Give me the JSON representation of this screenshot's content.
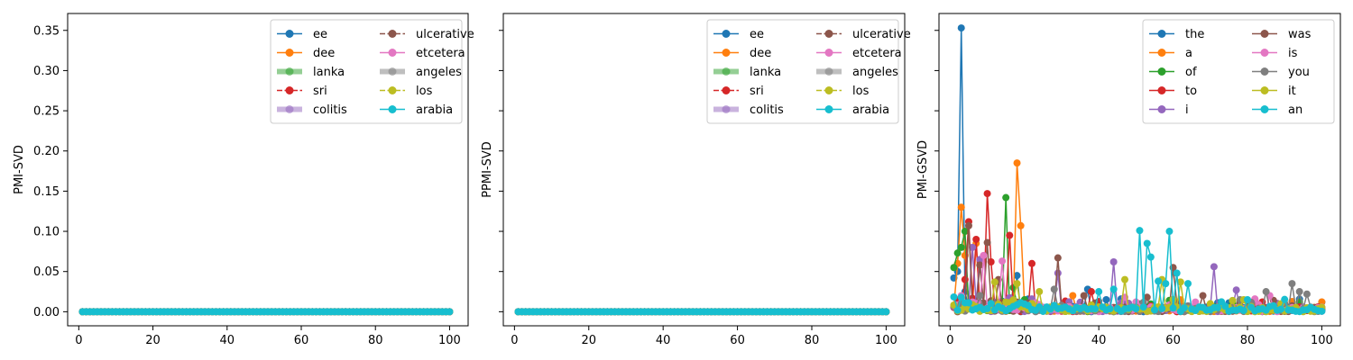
{
  "colors": {
    "tab10": [
      "#1f77b4",
      "#ff7f0e",
      "#2ca02c",
      "#d62728",
      "#9467bd",
      "#8c564b",
      "#e377c2",
      "#7f7f7f",
      "#bcbd22",
      "#17becf"
    ]
  },
  "chart_data": [
    {
      "type": "line",
      "title": "",
      "xlabel": "",
      "ylabel": "PMI-SVD",
      "xlim": [
        -3,
        105
      ],
      "ylim": [
        -0.0175,
        0.371
      ],
      "xticks": [
        "0",
        "20",
        "40",
        "60",
        "80",
        "100"
      ],
      "yticks": [
        "0.00",
        "0.05",
        "0.10",
        "0.15",
        "0.20",
        "0.25",
        "0.30",
        "0.35"
      ],
      "legend_position": "upper-right",
      "legend_columns": 2,
      "series": [
        {
          "name": "ee",
          "style": "solid"
        },
        {
          "name": "dee",
          "style": "solid"
        },
        {
          "name": "lanka",
          "style": "thick"
        },
        {
          "name": "sri",
          "style": "dashed"
        },
        {
          "name": "colitis",
          "style": "thick"
        },
        {
          "name": "ulcerative",
          "style": "dashed"
        },
        {
          "name": "etcetera",
          "style": "solid"
        },
        {
          "name": "angeles",
          "style": "thick"
        },
        {
          "name": "los",
          "style": "dashed"
        },
        {
          "name": "arabia",
          "style": "solid"
        }
      ],
      "series_values": "all series are approximately 0.00 for x = 1..100"
    },
    {
      "type": "line",
      "title": "",
      "xlabel": "",
      "ylabel": "PPMI-SVD",
      "xlim": [
        -3,
        105
      ],
      "ylim": [
        -0.0175,
        0.371
      ],
      "xticks": [
        "0",
        "20",
        "40",
        "60",
        "80",
        "100"
      ],
      "yticks": [],
      "legend_position": "upper-right",
      "legend_columns": 2,
      "series": [
        {
          "name": "ee",
          "style": "solid"
        },
        {
          "name": "dee",
          "style": "solid"
        },
        {
          "name": "lanka",
          "style": "thick"
        },
        {
          "name": "sri",
          "style": "dashed"
        },
        {
          "name": "colitis",
          "style": "thick"
        },
        {
          "name": "ulcerative",
          "style": "dashed"
        },
        {
          "name": "etcetera",
          "style": "solid"
        },
        {
          "name": "angeles",
          "style": "thick"
        },
        {
          "name": "los",
          "style": "dashed"
        },
        {
          "name": "arabia",
          "style": "solid"
        }
      ],
      "series_values": "all series are approximately 0.00 for x = 1..100"
    },
    {
      "type": "line",
      "title": "",
      "xlabel": "",
      "ylabel": "PMI-GSVD",
      "xlim": [
        -3,
        105
      ],
      "ylim": [
        -0.0175,
        0.371
      ],
      "xticks": [
        "0",
        "20",
        "40",
        "60",
        "80",
        "100"
      ],
      "yticks": [],
      "legend_position": "upper-right",
      "legend_columns": 2,
      "series": [
        {
          "name": "the",
          "style": "solid",
          "peaks": [
            [
              1,
              0.042
            ],
            [
              2,
              0.05
            ],
            [
              3,
              0.353
            ],
            [
              4,
              0.025
            ],
            [
              18,
              0.045
            ],
            [
              37,
              0.028
            ],
            [
              42,
              0.015
            ]
          ]
        },
        {
          "name": "a",
          "style": "solid",
          "peaks": [
            [
              2,
              0.06
            ],
            [
              3,
              0.13
            ],
            [
              4,
              0.07
            ],
            [
              7,
              0.085
            ],
            [
              18,
              0.185
            ],
            [
              19,
              0.107
            ],
            [
              33,
              0.02
            ]
          ]
        },
        {
          "name": "of",
          "style": "solid",
          "peaks": [
            [
              1,
              0.055
            ],
            [
              2,
              0.073
            ],
            [
              3,
              0.08
            ],
            [
              4,
              0.1
            ],
            [
              15,
              0.142
            ],
            [
              17,
              0.03
            ]
          ]
        },
        {
          "name": "to",
          "style": "solid",
          "peaks": [
            [
              4,
              0.04
            ],
            [
              5,
              0.112
            ],
            [
              7,
              0.09
            ],
            [
              10,
              0.147
            ],
            [
              11,
              0.062
            ],
            [
              16,
              0.095
            ],
            [
              22,
              0.06
            ],
            [
              38,
              0.025
            ]
          ]
        },
        {
          "name": "i",
          "style": "solid",
          "peaks": [
            [
              6,
              0.08
            ],
            [
              8,
              0.065
            ],
            [
              29,
              0.048
            ],
            [
              44,
              0.062
            ],
            [
              71,
              0.056
            ],
            [
              77,
              0.027
            ]
          ]
        },
        {
          "name": "was",
          "style": "solid",
          "peaks": [
            [
              5,
              0.107
            ],
            [
              8,
              0.058
            ],
            [
              10,
              0.086
            ],
            [
              13,
              0.04
            ],
            [
              29,
              0.067
            ],
            [
              36,
              0.02
            ],
            [
              53,
              0.018
            ],
            [
              60,
              0.055
            ],
            [
              68,
              0.02
            ]
          ]
        },
        {
          "name": "is",
          "style": "solid",
          "peaks": [
            [
              3,
              0.02
            ],
            [
              9,
              0.07
            ],
            [
              14,
              0.063
            ],
            [
              47,
              0.018
            ],
            [
              86,
              0.02
            ]
          ]
        },
        {
          "name": "you",
          "style": "solid",
          "peaks": [
            [
              8,
              0.02
            ],
            [
              28,
              0.028
            ],
            [
              85,
              0.025
            ],
            [
              92,
              0.035
            ],
            [
              94,
              0.025
            ],
            [
              96,
              0.022
            ]
          ]
        },
        {
          "name": "it",
          "style": "solid",
          "peaks": [
            [
              12,
              0.037
            ],
            [
              18,
              0.035
            ],
            [
              24,
              0.025
            ],
            [
              47,
              0.04
            ],
            [
              57,
              0.04
            ],
            [
              62,
              0.037
            ],
            [
              89,
              0.01
            ]
          ]
        },
        {
          "name": "an",
          "style": "solid",
          "peaks": [
            [
              3,
              0.018
            ],
            [
              40,
              0.025
            ],
            [
              44,
              0.028
            ],
            [
              51,
              0.101
            ],
            [
              53,
              0.085
            ],
            [
              54,
              0.068
            ],
            [
              56,
              0.038
            ],
            [
              58,
              0.035
            ],
            [
              59,
              0.1
            ],
            [
              61,
              0.048
            ],
            [
              64,
              0.035
            ],
            [
              80,
              0.015
            ]
          ]
        }
      ]
    }
  ]
}
